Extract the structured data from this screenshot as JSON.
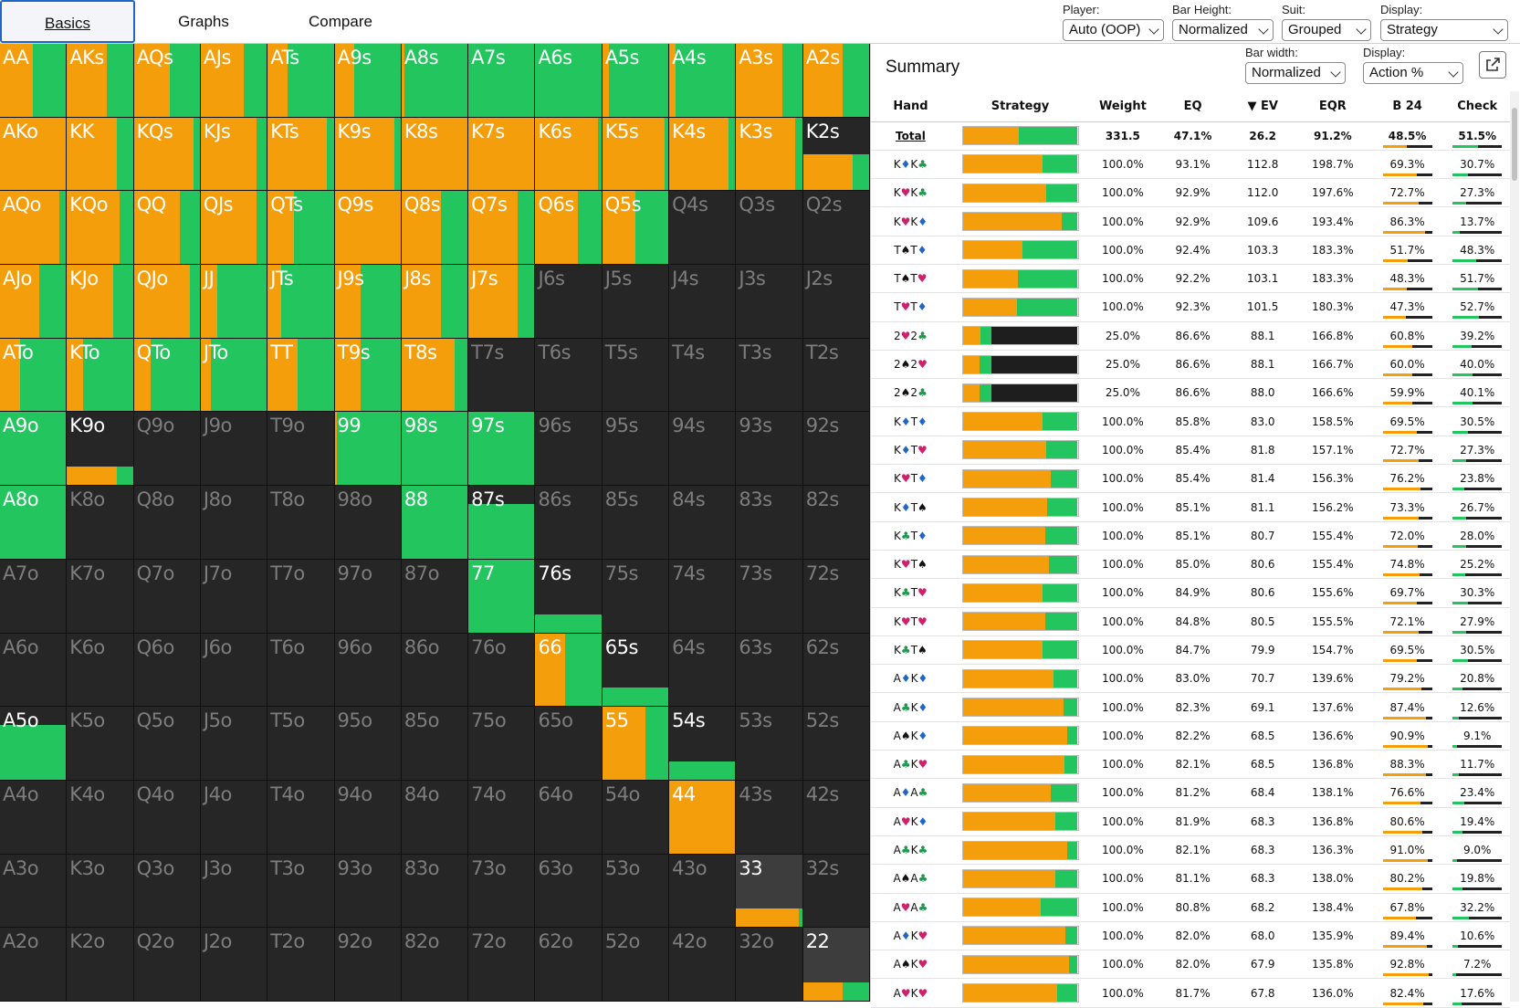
{
  "tabs": [
    "Basics",
    "Graphs",
    "Compare"
  ],
  "controls": {
    "player": {
      "label": "Player:",
      "value": "Auto (OOP)"
    },
    "bar_height": {
      "label": "Bar Height:",
      "value": "Normalized"
    },
    "suit": {
      "label": "Suit:",
      "value": "Grouped"
    },
    "display": {
      "label": "Display:",
      "value": "Strategy"
    }
  },
  "summary": {
    "title": "Summary",
    "bar_width": {
      "label": "Bar width:",
      "value": "Normalized"
    },
    "display": {
      "label": "Display:",
      "value": "Action %"
    }
  },
  "colors": {
    "bet": "#f59e0b",
    "check": "#22c55e",
    "unused": "#262626"
  },
  "grid": [
    [
      [
        "AA",
        1,
        0.5
      ],
      [
        "AKs",
        1,
        0.6
      ],
      [
        "AQs",
        1,
        0.55
      ],
      [
        "AJs",
        1,
        0.65
      ],
      [
        "ATs",
        1,
        0.3
      ],
      [
        "A9s",
        1,
        0.3
      ],
      [
        "A8s",
        1,
        0.05
      ],
      [
        "A7s",
        1,
        0
      ],
      [
        "A6s",
        1,
        0
      ],
      [
        "A5s",
        1,
        0.1
      ],
      [
        "A4s",
        1,
        0.1
      ],
      [
        "A3s",
        1,
        0.7
      ],
      [
        "A2s",
        1,
        0.6
      ]
    ],
    [
      [
        "AKo",
        1,
        1
      ],
      [
        "KK",
        1,
        0.75
      ],
      [
        "KQs",
        1,
        0.9
      ],
      [
        "KJs",
        1,
        0.85
      ],
      [
        "KTs",
        1,
        0.9
      ],
      [
        "K9s",
        1,
        0.9
      ],
      [
        "K8s",
        1,
        1
      ],
      [
        "K7s",
        1,
        1
      ],
      [
        "K6s",
        1,
        0.95
      ],
      [
        "K5s",
        1,
        0.95
      ],
      [
        "K4s",
        1,
        0.9
      ],
      [
        "K3s",
        1,
        0.9
      ],
      [
        "K2s",
        0.5,
        0.75
      ]
    ],
    [
      [
        "AQo",
        1,
        0.9
      ],
      [
        "KQo",
        1,
        0.8
      ],
      [
        "QQ",
        1,
        0.7
      ],
      [
        "QJs",
        1,
        0.85
      ],
      [
        "QTs",
        1,
        0.4
      ],
      [
        "Q9s",
        1,
        1
      ],
      [
        "Q8s",
        1,
        0.6
      ],
      [
        "Q7s",
        1,
        0.75
      ],
      [
        "Q6s",
        1,
        0.65
      ],
      [
        "Q5s",
        1,
        0.5
      ],
      [
        "Q4s",
        0,
        0
      ],
      [
        "Q3s",
        0,
        0
      ],
      [
        "Q2s",
        0,
        0
      ]
    ],
    [
      [
        "AJo",
        1,
        0.6
      ],
      [
        "KJo",
        1,
        0.7
      ],
      [
        "QJo",
        1,
        0.85
      ],
      [
        "JJ",
        1,
        0.25
      ],
      [
        "JTs",
        1,
        0.2
      ],
      [
        "J9s",
        1,
        0.4
      ],
      [
        "J8s",
        1,
        0.6
      ],
      [
        "J7s",
        1,
        0.75
      ],
      [
        "J6s",
        0,
        0
      ],
      [
        "J5s",
        0,
        0
      ],
      [
        "J4s",
        0,
        0
      ],
      [
        "J3s",
        0,
        0
      ],
      [
        "J2s",
        0,
        0
      ]
    ],
    [
      [
        "ATo",
        1,
        0.3
      ],
      [
        "KTo",
        1,
        0.25
      ],
      [
        "QTo",
        1,
        0.25
      ],
      [
        "JTo",
        1,
        0.15
      ],
      [
        "TT",
        1,
        0.45
      ],
      [
        "T9s",
        1,
        0.4
      ],
      [
        "T8s",
        1,
        0.8
      ],
      [
        "T7s",
        0,
        0
      ],
      [
        "T6s",
        0,
        0
      ],
      [
        "T5s",
        0,
        0
      ],
      [
        "T4s",
        0,
        0
      ],
      [
        "T3s",
        0,
        0
      ],
      [
        "T2s",
        0,
        0
      ]
    ],
    [
      [
        "A9o",
        1,
        0
      ],
      [
        "K9o",
        0.25,
        0.75
      ],
      [
        "Q9o",
        0,
        0
      ],
      [
        "J9o",
        0,
        0
      ],
      [
        "T9o",
        0,
        0
      ],
      [
        "99",
        1,
        0.03
      ],
      [
        "98s",
        1,
        0
      ],
      [
        "97s",
        1,
        0
      ],
      [
        "96s",
        0,
        0
      ],
      [
        "95s",
        0,
        0
      ],
      [
        "94s",
        0,
        0
      ],
      [
        "93s",
        0,
        0
      ],
      [
        "92s",
        0,
        0
      ]
    ],
    [
      [
        "A8o",
        1,
        0
      ],
      [
        "K8o",
        0,
        0
      ],
      [
        "Q8o",
        0,
        0
      ],
      [
        "J8o",
        0,
        0
      ],
      [
        "T8o",
        0,
        0
      ],
      [
        "98o",
        0,
        0
      ],
      [
        "88",
        1,
        0
      ],
      [
        "87s",
        0.75,
        0
      ],
      [
        "86s",
        0,
        0
      ],
      [
        "85s",
        0,
        0
      ],
      [
        "84s",
        0,
        0
      ],
      [
        "83s",
        0,
        0
      ],
      [
        "82s",
        0,
        0
      ]
    ],
    [
      [
        "A7o",
        0,
        0
      ],
      [
        "K7o",
        0,
        0
      ],
      [
        "Q7o",
        0,
        0
      ],
      [
        "J7o",
        0,
        0
      ],
      [
        "T7o",
        0,
        0
      ],
      [
        "97o",
        0,
        0
      ],
      [
        "87o",
        0,
        0
      ],
      [
        "77",
        1,
        0
      ],
      [
        "76s",
        0.25,
        0
      ],
      [
        "75s",
        0,
        0
      ],
      [
        "74s",
        0,
        0
      ],
      [
        "73s",
        0,
        0
      ],
      [
        "72s",
        0,
        0
      ]
    ],
    [
      [
        "A6o",
        0,
        0
      ],
      [
        "K6o",
        0,
        0
      ],
      [
        "Q6o",
        0,
        0
      ],
      [
        "J6o",
        0,
        0
      ],
      [
        "T6o",
        0,
        0
      ],
      [
        "96o",
        0,
        0
      ],
      [
        "86o",
        0,
        0
      ],
      [
        "76o",
        0,
        0
      ],
      [
        "66",
        1,
        0.45
      ],
      [
        "65s",
        0.25,
        0
      ],
      [
        "64s",
        0,
        0
      ],
      [
        "63s",
        0,
        0
      ],
      [
        "62s",
        0,
        0
      ]
    ],
    [
      [
        "A5o",
        0.75,
        0
      ],
      [
        "K5o",
        0,
        0
      ],
      [
        "Q5o",
        0,
        0
      ],
      [
        "J5o",
        0,
        0
      ],
      [
        "T5o",
        0,
        0
      ],
      [
        "95o",
        0,
        0
      ],
      [
        "85o",
        0,
        0
      ],
      [
        "75o",
        0,
        0
      ],
      [
        "65o",
        0,
        0
      ],
      [
        "55",
        1,
        0.65
      ],
      [
        "54s",
        0.25,
        0
      ],
      [
        "53s",
        0,
        0
      ],
      [
        "52s",
        0,
        0
      ]
    ],
    [
      [
        "A4o",
        0,
        0
      ],
      [
        "K4o",
        0,
        0
      ],
      [
        "Q4o",
        0,
        0
      ],
      [
        "J4o",
        0,
        0
      ],
      [
        "T4o",
        0,
        0
      ],
      [
        "94o",
        0,
        0
      ],
      [
        "84o",
        0,
        0
      ],
      [
        "74o",
        0,
        0
      ],
      [
        "64o",
        0,
        0
      ],
      [
        "54o",
        0,
        0
      ],
      [
        "44",
        1,
        1
      ],
      [
        "43s",
        0,
        0
      ],
      [
        "42s",
        0,
        0
      ]
    ],
    [
      [
        "A3o",
        0,
        0
      ],
      [
        "K3o",
        0,
        0
      ],
      [
        "Q3o",
        0,
        0
      ],
      [
        "J3o",
        0,
        0
      ],
      [
        "T3o",
        0,
        0
      ],
      [
        "93o",
        0,
        0
      ],
      [
        "83o",
        0,
        0
      ],
      [
        "73o",
        0,
        0
      ],
      [
        "63o",
        0,
        0
      ],
      [
        "53o",
        0,
        0
      ],
      [
        "43o",
        0,
        0
      ],
      [
        "33",
        0.25,
        0.95
      ],
      [
        "32s",
        0,
        0
      ]
    ],
    [
      [
        "A2o",
        0,
        0
      ],
      [
        "K2o",
        0,
        0
      ],
      [
        "Q2o",
        0,
        0
      ],
      [
        "J2o",
        0,
        0
      ],
      [
        "T2o",
        0,
        0
      ],
      [
        "92o",
        0,
        0
      ],
      [
        "82o",
        0,
        0
      ],
      [
        "72o",
        0,
        0
      ],
      [
        "62o",
        0,
        0
      ],
      [
        "52o",
        0,
        0
      ],
      [
        "42o",
        0,
        0
      ],
      [
        "32o",
        0,
        0
      ],
      [
        "22",
        0.25,
        0.6
      ]
    ]
  ],
  "table": {
    "headers": [
      "Hand",
      "Strategy",
      "Weight",
      "EQ",
      "▼ EV",
      "EQR",
      "B 24",
      "Check"
    ],
    "total": {
      "hand": "Total",
      "bet": 0.485,
      "check": 0.515,
      "fold": 0,
      "weight": "331.5",
      "eq": "47.1%",
      "ev": "26.2",
      "eqr": "91.2%",
      "b24": "48.5%",
      "chk": "51.5%"
    },
    "rows": [
      [
        "K♦K♣",
        "100.0%",
        "93.1%",
        "112.8",
        "198.7%",
        "69.3%",
        "30.7%",
        1
      ],
      [
        "K♥K♣",
        "100.0%",
        "92.9%",
        "112.0",
        "197.6%",
        "72.7%",
        "27.3%",
        1
      ],
      [
        "K♥K♦",
        "100.0%",
        "92.9%",
        "109.6",
        "193.4%",
        "86.3%",
        "13.7%",
        1
      ],
      [
        "T♠T♦",
        "100.0%",
        "92.4%",
        "103.3",
        "183.3%",
        "51.7%",
        "48.3%",
        1
      ],
      [
        "T♠T♥",
        "100.0%",
        "92.2%",
        "103.1",
        "183.3%",
        "48.3%",
        "51.7%",
        1
      ],
      [
        "T♥T♦",
        "100.0%",
        "92.3%",
        "101.5",
        "180.3%",
        "47.3%",
        "52.7%",
        1
      ],
      [
        "2♥2♣",
        "25.0%",
        "86.6%",
        "88.1",
        "166.8%",
        "60.8%",
        "39.2%",
        0.25
      ],
      [
        "2♠2♥",
        "25.0%",
        "86.6%",
        "88.1",
        "166.7%",
        "60.0%",
        "40.0%",
        0.25
      ],
      [
        "2♠2♣",
        "25.0%",
        "86.6%",
        "88.0",
        "166.6%",
        "59.9%",
        "40.1%",
        0.25
      ],
      [
        "K♦T♦",
        "100.0%",
        "85.8%",
        "83.0",
        "158.5%",
        "69.5%",
        "30.5%",
        1
      ],
      [
        "K♦T♥",
        "100.0%",
        "85.4%",
        "81.8",
        "157.1%",
        "72.7%",
        "27.3%",
        1
      ],
      [
        "K♥T♦",
        "100.0%",
        "85.4%",
        "81.4",
        "156.3%",
        "76.2%",
        "23.8%",
        1
      ],
      [
        "K♦T♠",
        "100.0%",
        "85.1%",
        "81.1",
        "156.2%",
        "73.3%",
        "26.7%",
        1
      ],
      [
        "K♣T♦",
        "100.0%",
        "85.1%",
        "80.7",
        "155.4%",
        "72.0%",
        "28.0%",
        1
      ],
      [
        "K♥T♠",
        "100.0%",
        "85.0%",
        "80.6",
        "155.4%",
        "74.8%",
        "25.2%",
        1
      ],
      [
        "K♣T♥",
        "100.0%",
        "84.9%",
        "80.6",
        "155.6%",
        "69.7%",
        "30.3%",
        1
      ],
      [
        "K♥T♥",
        "100.0%",
        "84.8%",
        "80.5",
        "155.5%",
        "72.1%",
        "27.9%",
        1
      ],
      [
        "K♣T♠",
        "100.0%",
        "84.7%",
        "79.9",
        "154.7%",
        "69.5%",
        "30.5%",
        1
      ],
      [
        "A♦K♦",
        "100.0%",
        "83.0%",
        "70.7",
        "139.6%",
        "79.2%",
        "20.8%",
        1
      ],
      [
        "A♣K♦",
        "100.0%",
        "82.3%",
        "69.1",
        "137.6%",
        "87.4%",
        "12.6%",
        1
      ],
      [
        "A♠K♦",
        "100.0%",
        "82.2%",
        "68.5",
        "136.6%",
        "90.9%",
        "9.1%",
        1
      ],
      [
        "A♣K♥",
        "100.0%",
        "82.1%",
        "68.5",
        "136.8%",
        "88.3%",
        "11.7%",
        1
      ],
      [
        "A♦A♣",
        "100.0%",
        "81.2%",
        "68.4",
        "138.1%",
        "76.6%",
        "23.4%",
        1
      ],
      [
        "A♥K♦",
        "100.0%",
        "81.9%",
        "68.3",
        "136.8%",
        "80.6%",
        "19.4%",
        1
      ],
      [
        "A♣K♣",
        "100.0%",
        "82.1%",
        "68.3",
        "136.3%",
        "91.0%",
        "9.0%",
        1
      ],
      [
        "A♠A♣",
        "100.0%",
        "81.1%",
        "68.3",
        "138.0%",
        "80.2%",
        "19.8%",
        1
      ],
      [
        "A♥A♣",
        "100.0%",
        "80.8%",
        "68.2",
        "138.4%",
        "67.8%",
        "32.2%",
        1
      ],
      [
        "A♦K♥",
        "100.0%",
        "82.0%",
        "68.0",
        "135.9%",
        "89.4%",
        "10.6%",
        1
      ],
      [
        "A♠K♥",
        "100.0%",
        "82.0%",
        "67.9",
        "135.8%",
        "92.8%",
        "7.2%",
        1
      ],
      [
        "A♥K♥",
        "100.0%",
        "81.7%",
        "67.8",
        "136.0%",
        "82.4%",
        "17.6%",
        1
      ]
    ]
  }
}
